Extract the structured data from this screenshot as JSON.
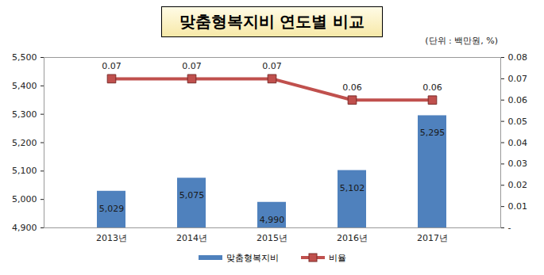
{
  "chart_data": {
    "type": "bar",
    "title": "맞춤형복지비 연도별 비교",
    "subtitle": "(단위 : 백만원, %)",
    "categories": [
      "2013년",
      "2014년",
      "2015년",
      "2016년",
      "2017년"
    ],
    "series": [
      {
        "name": "맞춤형복지비",
        "type": "bar",
        "color": "#4f81bd",
        "values": [
          5029,
          5075,
          4990,
          5102,
          5295
        ],
        "value_labels": [
          "5,029",
          "5,075",
          "4,990",
          "5,102",
          "5,295"
        ]
      },
      {
        "name": "비율",
        "type": "line",
        "axis": "y2",
        "color": "#c0504d",
        "marker": "square",
        "values": [
          0.07,
          0.07,
          0.07,
          0.06,
          0.06
        ]
      }
    ],
    "ylim": [
      4900,
      5500
    ],
    "yticks": [
      {
        "value": 4900,
        "label": "4,900"
      },
      {
        "value": 5000,
        "label": "5,000"
      },
      {
        "value": 5100,
        "label": "5,100"
      },
      {
        "value": 5200,
        "label": "5,200"
      },
      {
        "value": 5300,
        "label": "5,300"
      },
      {
        "value": 5400,
        "label": "5,400"
      },
      {
        "value": 5500,
        "label": "5,500"
      }
    ],
    "y2lim": [
      0,
      0.08
    ],
    "y2ticks": [
      {
        "value": 0,
        "label": "-"
      },
      0.01,
      0.02,
      0.03,
      0.04,
      0.05,
      0.06,
      0.07,
      0.08
    ],
    "data_labels": true,
    "legend": "bottom"
  }
}
